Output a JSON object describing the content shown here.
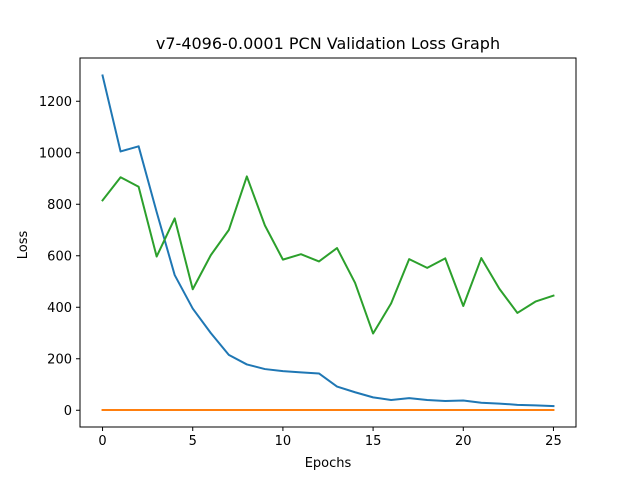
{
  "chart_data": {
    "type": "line",
    "title": "v7-4096-0.0001 PCN Validation Loss Graph",
    "xlabel": "Epochs",
    "ylabel": "Loss",
    "xlim": [
      -1.25,
      26.25
    ],
    "ylim": [
      -65,
      1368
    ],
    "xticks": [
      0,
      5,
      10,
      15,
      20,
      25
    ],
    "yticks": [
      0,
      200,
      400,
      600,
      800,
      1000,
      1200
    ],
    "grid": false,
    "legend": "none",
    "x": [
      0,
      1,
      2,
      3,
      4,
      5,
      6,
      7,
      8,
      9,
      10,
      11,
      12,
      13,
      14,
      15,
      16,
      17,
      18,
      19,
      20,
      21,
      22,
      23,
      24,
      25
    ],
    "series": [
      {
        "color": "#1f77b4",
        "values": [
          1300,
          1005,
          1025,
          770,
          525,
          395,
          300,
          215,
          178,
          160,
          152,
          147,
          143,
          92,
          70,
          50,
          40,
          47,
          40,
          36,
          38,
          29,
          26,
          21,
          19,
          16
        ]
      },
      {
        "color": "#ff7f0e",
        "values": [
          1,
          1,
          1,
          1,
          1,
          1,
          1,
          1,
          1,
          1,
          1,
          1,
          1,
          1,
          1,
          1,
          1,
          1,
          1,
          1,
          1,
          1,
          1,
          1,
          1,
          1
        ]
      },
      {
        "color": "#2ca02c",
        "values": [
          815,
          905,
          868,
          597,
          745,
          470,
          602,
          700,
          908,
          718,
          585,
          606,
          578,
          630,
          495,
          298,
          415,
          587,
          553,
          590,
          405,
          591,
          472,
          378,
          422,
          445
        ]
      }
    ]
  }
}
